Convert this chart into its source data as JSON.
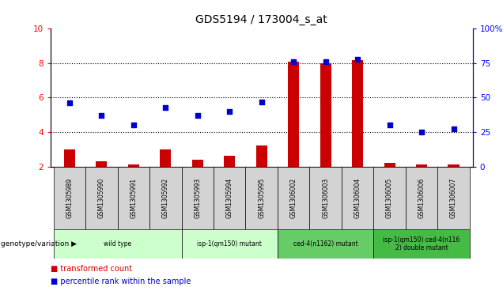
{
  "title": "GDS5194 / 173004_s_at",
  "samples": [
    "GSM1305989",
    "GSM1305990",
    "GSM1305991",
    "GSM1305992",
    "GSM1305993",
    "GSM1305994",
    "GSM1305995",
    "GSM1306002",
    "GSM1306003",
    "GSM1306004",
    "GSM1306005",
    "GSM1306006",
    "GSM1306007"
  ],
  "transformed_count": [
    3.0,
    2.3,
    2.1,
    3.0,
    2.4,
    2.6,
    3.2,
    8.1,
    8.0,
    8.2,
    2.2,
    2.1,
    2.1
  ],
  "percentile_rank": [
    46,
    37,
    30,
    43,
    37,
    40,
    47,
    76,
    76,
    78,
    30,
    25,
    27
  ],
  "bar_color": "#cc0000",
  "dot_color": "#0000cc",
  "ylim_left": [
    2,
    10
  ],
  "ylim_right": [
    0,
    100
  ],
  "yticks_left": [
    2,
    4,
    6,
    8,
    10
  ],
  "yticks_right": [
    0,
    25,
    50,
    75,
    100
  ],
  "groups": [
    {
      "label": "wild type",
      "start": 0,
      "end": 3,
      "color": "#ccffcc"
    },
    {
      "label": "isp-1(qm150) mutant",
      "start": 4,
      "end": 6,
      "color": "#ccffcc"
    },
    {
      "label": "ced-4(n1162) mutant",
      "start": 7,
      "end": 9,
      "color": "#66cc66"
    },
    {
      "label": "isp-1(qm150) ced-4(n116\n2) double mutant",
      "start": 10,
      "end": 12,
      "color": "#44bb44"
    }
  ],
  "legend_items": [
    {
      "label": "transformed count",
      "color": "#cc0000"
    },
    {
      "label": "percentile rank within the sample",
      "color": "#0000cc"
    }
  ],
  "genotype_label": "genotype/variation",
  "sample_cell_color": "#d3d3d3",
  "grid_yticks": [
    4,
    6,
    8
  ]
}
